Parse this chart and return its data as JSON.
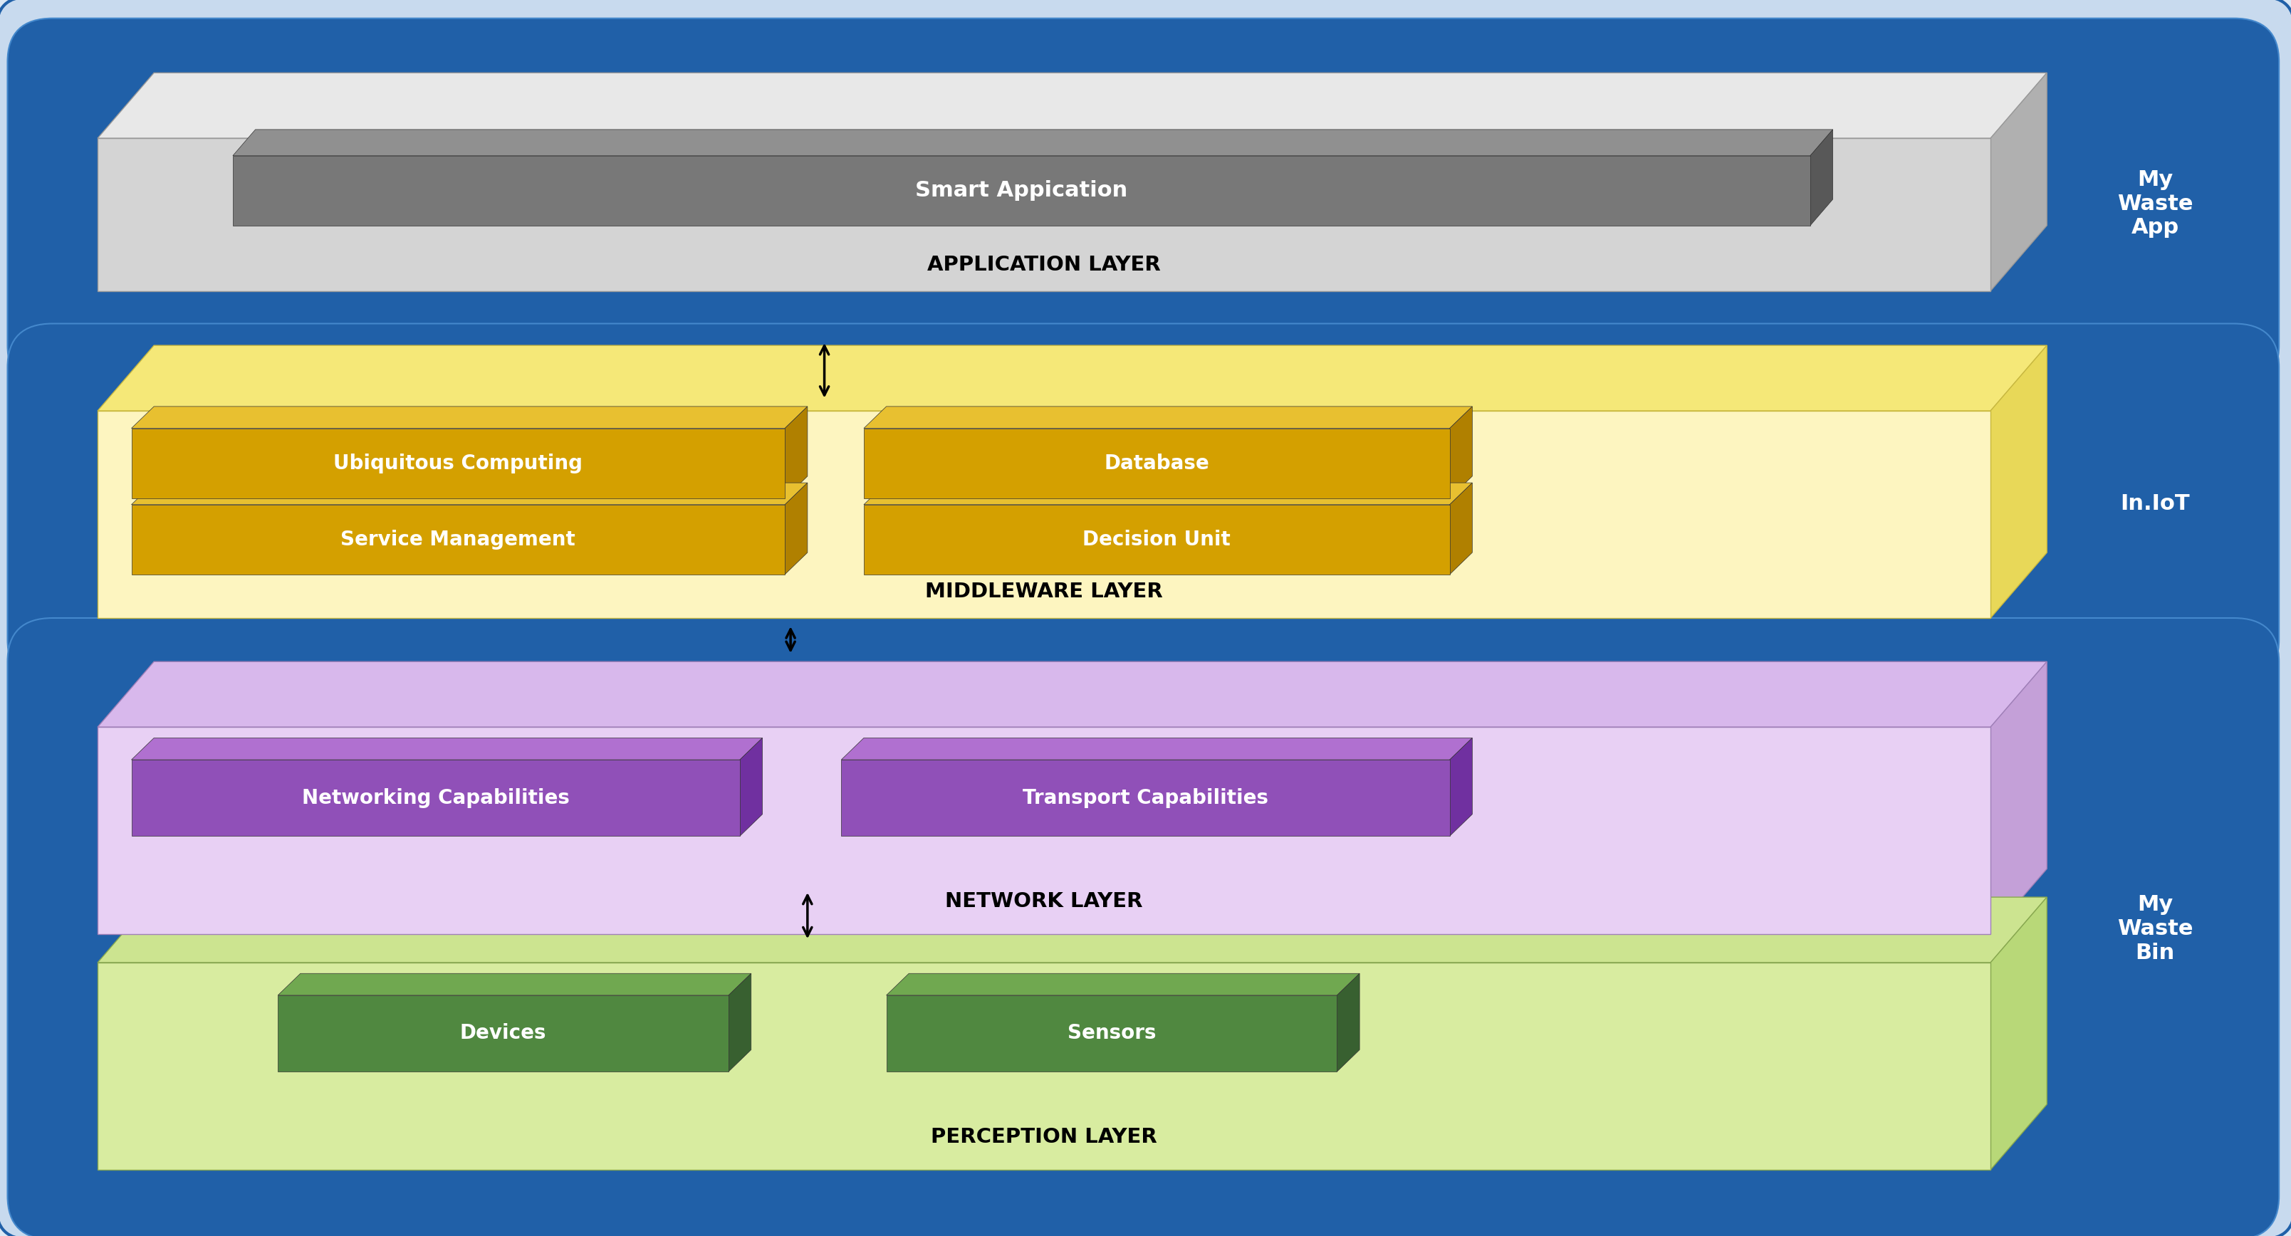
{
  "fig_width": 32.17,
  "fig_height": 17.36,
  "bg_outer": "#dce8f4",
  "bg_inner": "#c8daee",
  "layer_blue": "#2060a8",
  "app_label": "APPLICATION LAYER",
  "app_inner_label": "Smart Appication",
  "middleware_label": "MIDDLEWARE LAYER",
  "middleware_boxes": [
    "Ubiquitous Computing",
    "Database",
    "Service Management",
    "Decision Unit"
  ],
  "network_label": "NETWORK LAYER",
  "network_boxes": [
    "Networking Capabilities",
    "Transport Capabilities"
  ],
  "perception_label": "PERCEPTION LAYER",
  "perception_boxes": [
    "Devices",
    "Sensors"
  ],
  "right_label_1": "My\nWaste\nApp",
  "right_label_2": "In.IoT",
  "right_label_3": "My\nWaste\nBin",
  "arrow_color": "#111111"
}
